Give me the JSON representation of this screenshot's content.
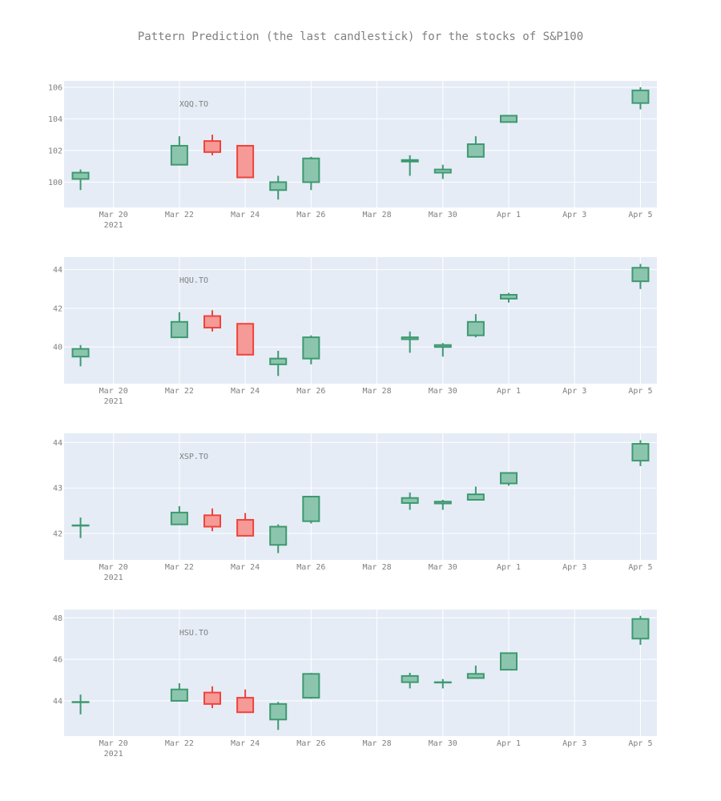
{
  "title": "Pattern Prediction (the last candlestick) for the stocks of S&P100",
  "colors": {
    "plot_bg": "#E5ECF6",
    "grid": "#ffffff",
    "text": "#7f7f7f",
    "increasing_line": "#3D9970",
    "increasing_fill": "#8CC5AD",
    "decreasing_line": "#F0433C",
    "decreasing_fill": "#F59A96"
  },
  "x_ticks": [
    {
      "date": "2021-03-20",
      "label": "Mar 20",
      "sublabel": "2021"
    },
    {
      "date": "2021-03-22",
      "label": "Mar 22"
    },
    {
      "date": "2021-03-24",
      "label": "Mar 24"
    },
    {
      "date": "2021-03-26",
      "label": "Mar 26"
    },
    {
      "date": "2021-03-28",
      "label": "Mar 28"
    },
    {
      "date": "2021-03-30",
      "label": "Mar 30"
    },
    {
      "date": "2021-04-01",
      "label": "Apr 1"
    },
    {
      "date": "2021-04-03",
      "label": "Apr 3"
    },
    {
      "date": "2021-04-05",
      "label": "Apr 5"
    }
  ],
  "chart_data": [
    {
      "type": "candlestick",
      "annotation": "XQQ.TO",
      "xlim": [
        "2021-03-18 12:00",
        "2021-04-05 12:00"
      ],
      "ylim": [
        98.4,
        106.4
      ],
      "y_ticks": [
        100,
        102,
        104,
        106
      ],
      "candles": [
        {
          "date": "2021-03-19",
          "open": 100.2,
          "high": 100.8,
          "low": 99.5,
          "close": 100.6
        },
        {
          "date": "2021-03-22",
          "open": 101.1,
          "high": 102.9,
          "low": 101.1,
          "close": 102.3
        },
        {
          "date": "2021-03-23",
          "open": 102.6,
          "high": 103.0,
          "low": 101.7,
          "close": 101.9
        },
        {
          "date": "2021-03-24",
          "open": 102.3,
          "high": 102.3,
          "low": 100.3,
          "close": 100.3
        },
        {
          "date": "2021-03-25",
          "open": 99.5,
          "high": 100.4,
          "low": 98.9,
          "close": 100.0
        },
        {
          "date": "2021-03-26",
          "open": 100.0,
          "high": 101.6,
          "low": 99.5,
          "close": 101.5
        },
        {
          "date": "2021-03-29",
          "open": 101.3,
          "high": 101.7,
          "low": 100.4,
          "close": 101.4
        },
        {
          "date": "2021-03-30",
          "open": 100.6,
          "high": 101.1,
          "low": 100.2,
          "close": 100.8
        },
        {
          "date": "2021-03-31",
          "open": 101.6,
          "high": 102.9,
          "low": 101.6,
          "close": 102.4
        },
        {
          "date": "2021-04-01",
          "open": 103.8,
          "high": 104.2,
          "low": 103.8,
          "close": 104.2
        },
        {
          "date": "2021-04-05",
          "open": 105.0,
          "high": 106.0,
          "low": 104.6,
          "close": 105.8
        }
      ]
    },
    {
      "type": "candlestick",
      "annotation": "HQU.TO",
      "xlim": [
        "2021-03-18 12:00",
        "2021-04-05 12:00"
      ],
      "ylim": [
        38.1,
        44.65
      ],
      "y_ticks": [
        40,
        42,
        44
      ],
      "candles": [
        {
          "date": "2021-03-19",
          "open": 39.5,
          "high": 40.1,
          "low": 39.0,
          "close": 39.9
        },
        {
          "date": "2021-03-22",
          "open": 40.5,
          "high": 41.8,
          "low": 40.5,
          "close": 41.3
        },
        {
          "date": "2021-03-23",
          "open": 41.6,
          "high": 41.9,
          "low": 40.8,
          "close": 41.0
        },
        {
          "date": "2021-03-24",
          "open": 41.2,
          "high": 41.2,
          "low": 39.6,
          "close": 39.6
        },
        {
          "date": "2021-03-25",
          "open": 39.1,
          "high": 39.8,
          "low": 38.5,
          "close": 39.4
        },
        {
          "date": "2021-03-26",
          "open": 39.4,
          "high": 40.6,
          "low": 39.1,
          "close": 40.5
        },
        {
          "date": "2021-03-29",
          "open": 40.4,
          "high": 40.8,
          "low": 39.7,
          "close": 40.5
        },
        {
          "date": "2021-03-30",
          "open": 40.0,
          "high": 40.2,
          "low": 39.5,
          "close": 40.1
        },
        {
          "date": "2021-03-31",
          "open": 40.6,
          "high": 41.7,
          "low": 40.5,
          "close": 41.3
        },
        {
          "date": "2021-04-01",
          "open": 42.5,
          "high": 42.8,
          "low": 42.3,
          "close": 42.7
        },
        {
          "date": "2021-04-05",
          "open": 43.4,
          "high": 44.3,
          "low": 43.0,
          "close": 44.1
        }
      ]
    },
    {
      "type": "candlestick",
      "annotation": "XSP.TO",
      "xlim": [
        "2021-03-18 12:00",
        "2021-04-05 12:00"
      ],
      "ylim": [
        41.42,
        44.2
      ],
      "y_ticks": [
        42,
        43,
        44
      ],
      "candles": [
        {
          "date": "2021-03-19",
          "open": 42.18,
          "high": 42.35,
          "low": 41.9,
          "close": 42.18
        },
        {
          "date": "2021-03-22",
          "open": 42.2,
          "high": 42.6,
          "low": 42.2,
          "close": 42.46
        },
        {
          "date": "2021-03-23",
          "open": 42.4,
          "high": 42.55,
          "low": 42.05,
          "close": 42.15
        },
        {
          "date": "2021-03-24",
          "open": 42.3,
          "high": 42.45,
          "low": 41.93,
          "close": 41.95
        },
        {
          "date": "2021-03-25",
          "open": 41.75,
          "high": 42.2,
          "low": 41.57,
          "close": 42.15
        },
        {
          "date": "2021-03-26",
          "open": 42.27,
          "high": 42.82,
          "low": 42.22,
          "close": 42.81
        },
        {
          "date": "2021-03-29",
          "open": 42.67,
          "high": 42.9,
          "low": 42.52,
          "close": 42.78
        },
        {
          "date": "2021-03-30",
          "open": 42.66,
          "high": 42.74,
          "low": 42.52,
          "close": 42.7
        },
        {
          "date": "2021-03-31",
          "open": 42.74,
          "high": 43.03,
          "low": 42.74,
          "close": 42.86
        },
        {
          "date": "2021-04-01",
          "open": 43.1,
          "high": 43.33,
          "low": 43.05,
          "close": 43.33
        },
        {
          "date": "2021-04-05",
          "open": 43.6,
          "high": 44.05,
          "low": 43.48,
          "close": 43.97
        }
      ]
    },
    {
      "type": "candlestick",
      "annotation": "HSU.TO",
      "xlim": [
        "2021-03-18 12:00",
        "2021-04-05 12:00"
      ],
      "ylim": [
        42.3,
        48.4
      ],
      "y_ticks": [
        44,
        46,
        48
      ],
      "candles": [
        {
          "date": "2021-03-19",
          "open": 43.95,
          "high": 44.3,
          "low": 43.35,
          "close": 43.95
        },
        {
          "date": "2021-03-22",
          "open": 44.0,
          "high": 44.85,
          "low": 44.0,
          "close": 44.55
        },
        {
          "date": "2021-03-23",
          "open": 44.4,
          "high": 44.7,
          "low": 43.65,
          "close": 43.85
        },
        {
          "date": "2021-03-24",
          "open": 44.15,
          "high": 44.55,
          "low": 43.45,
          "close": 43.45
        },
        {
          "date": "2021-03-25",
          "open": 43.1,
          "high": 43.95,
          "low": 42.6,
          "close": 43.85
        },
        {
          "date": "2021-03-26",
          "open": 44.15,
          "high": 45.35,
          "low": 44.1,
          "close": 45.3
        },
        {
          "date": "2021-03-29",
          "open": 44.9,
          "high": 45.35,
          "low": 44.6,
          "close": 45.2
        },
        {
          "date": "2021-03-30",
          "open": 44.9,
          "high": 45.05,
          "low": 44.6,
          "close": 44.9
        },
        {
          "date": "2021-03-31",
          "open": 45.1,
          "high": 45.7,
          "low": 45.1,
          "close": 45.3
        },
        {
          "date": "2021-04-01",
          "open": 45.5,
          "high": 46.3,
          "low": 45.5,
          "close": 46.3
        },
        {
          "date": "2021-04-05",
          "open": 47.0,
          "high": 48.1,
          "low": 46.7,
          "close": 47.95
        }
      ]
    }
  ]
}
